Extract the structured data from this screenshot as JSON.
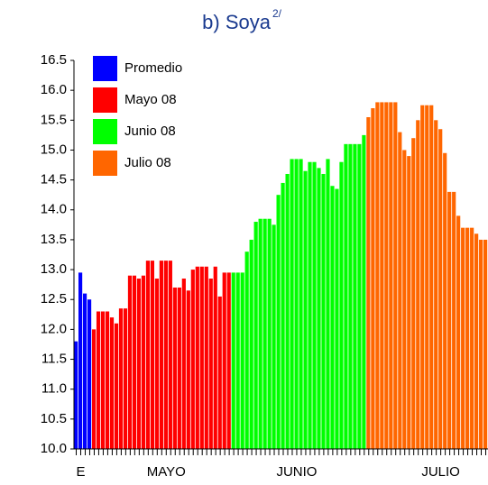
{
  "chart_data": {
    "type": "bar",
    "title": "b) Soya",
    "title_superscript": "2/",
    "categories": [
      null,
      "E",
      null,
      null,
      null,
      null,
      null,
      null,
      null,
      null,
      null,
      null,
      null,
      null,
      null,
      null,
      null,
      null,
      null,
      null,
      "MAYO",
      null,
      null,
      null,
      null,
      null,
      null,
      null,
      null,
      null,
      null,
      null,
      null,
      null,
      null,
      null,
      null,
      null,
      null,
      null,
      null,
      null,
      null,
      null,
      null,
      null,
      null,
      null,
      null,
      "JUNIO",
      null,
      null,
      null,
      null,
      null,
      null,
      null,
      null,
      null,
      null,
      null,
      null,
      null,
      null,
      null,
      null,
      null,
      null,
      null,
      null,
      null,
      null,
      null,
      null,
      null,
      null,
      null,
      null,
      null,
      null,
      null,
      "JULIO",
      null,
      null,
      null,
      null,
      null,
      null,
      null,
      null,
      null,
      null
    ],
    "series": [
      {
        "name": "Promedio",
        "color": "#0000ff",
        "values": [
          11.8,
          12.95,
          12.6,
          12.5,
          null,
          null,
          null,
          null,
          null,
          null,
          null,
          null,
          null,
          null,
          null,
          null,
          null,
          null,
          null,
          null,
          null,
          null,
          null,
          null,
          null,
          null,
          null,
          null,
          null,
          null,
          null,
          null,
          null,
          null,
          null,
          null,
          null,
          null,
          null,
          null,
          null,
          null,
          null,
          null,
          null,
          null,
          null,
          null,
          null,
          null,
          null,
          null,
          null,
          null,
          null,
          null,
          null,
          null,
          null,
          null,
          null,
          null,
          null,
          null,
          null,
          null,
          null,
          null,
          null,
          null,
          null,
          null,
          null,
          null,
          null,
          null,
          null,
          null,
          null,
          null,
          null,
          null,
          null,
          null,
          null,
          null,
          null,
          null,
          null,
          null,
          null,
          null
        ]
      },
      {
        "name": "Mayo 08",
        "color": "#ff0000",
        "values": [
          null,
          null,
          null,
          null,
          12.0,
          12.3,
          12.3,
          12.3,
          12.2,
          12.1,
          12.35,
          12.35,
          12.9,
          12.9,
          12.85,
          12.9,
          13.15,
          13.15,
          12.85,
          13.15,
          13.15,
          13.15,
          12.7,
          12.7,
          12.85,
          12.65,
          13.0,
          13.05,
          13.05,
          13.05,
          12.85,
          13.05,
          12.55,
          12.95,
          12.95,
          null,
          null,
          null,
          null,
          null,
          null,
          null,
          null,
          null,
          null,
          null,
          null,
          null,
          null,
          null,
          null,
          null,
          null,
          null,
          null,
          null,
          null,
          null,
          null,
          null,
          null,
          null,
          null,
          null,
          null,
          null,
          null,
          null,
          null,
          null,
          null,
          null,
          null,
          null,
          null,
          null,
          null,
          null,
          null,
          null,
          null,
          null,
          null,
          null,
          null,
          null,
          null,
          null,
          null,
          null,
          null,
          null
        ]
      },
      {
        "name": "Junio 08",
        "color": "#00ff00",
        "values": [
          null,
          null,
          null,
          null,
          null,
          null,
          null,
          null,
          null,
          null,
          null,
          null,
          null,
          null,
          null,
          null,
          null,
          null,
          null,
          null,
          null,
          null,
          null,
          null,
          null,
          null,
          null,
          null,
          null,
          null,
          null,
          null,
          null,
          null,
          null,
          12.95,
          12.95,
          12.95,
          13.3,
          13.5,
          13.8,
          13.85,
          13.85,
          13.85,
          13.75,
          14.25,
          14.45,
          14.6,
          14.85,
          14.85,
          14.85,
          14.65,
          14.8,
          14.8,
          14.7,
          14.6,
          14.85,
          14.4,
          14.35,
          14.8,
          15.1,
          15.1,
          15.1,
          15.1,
          15.25,
          null,
          null,
          null,
          null,
          null,
          null,
          null,
          null,
          null,
          null,
          null,
          null,
          null,
          null,
          null,
          null,
          null,
          null,
          null,
          null,
          null,
          null,
          null,
          null,
          null,
          null,
          null
        ]
      },
      {
        "name": "Julio 08",
        "color": "#ff6600",
        "values": [
          null,
          null,
          null,
          null,
          null,
          null,
          null,
          null,
          null,
          null,
          null,
          null,
          null,
          null,
          null,
          null,
          null,
          null,
          null,
          null,
          null,
          null,
          null,
          null,
          null,
          null,
          null,
          null,
          null,
          null,
          null,
          null,
          null,
          null,
          null,
          null,
          null,
          null,
          null,
          null,
          null,
          null,
          null,
          null,
          null,
          null,
          null,
          null,
          null,
          null,
          null,
          null,
          null,
          null,
          null,
          null,
          null,
          null,
          null,
          null,
          null,
          null,
          null,
          null,
          null,
          15.55,
          15.7,
          15.8,
          15.8,
          15.8,
          15.8,
          15.8,
          15.3,
          15.0,
          14.9,
          15.2,
          15.5,
          15.75,
          15.75,
          15.75,
          15.5,
          15.35,
          14.95,
          14.3,
          14.3,
          13.9,
          13.7,
          13.7,
          13.7,
          13.6,
          13.5,
          13.5
        ]
      }
    ],
    "ylim": [
      10,
      16.5
    ],
    "yticks": [
      {
        "value": 10,
        "label": "10.0"
      },
      10.5,
      {
        "value": 11,
        "label": "11.0"
      },
      11.5,
      {
        "value": 12,
        "label": "12.0"
      },
      12.5,
      {
        "value": 13,
        "label": "13.0"
      },
      13.5,
      {
        "value": 14,
        "label": "14.0"
      },
      14.5,
      {
        "value": 15,
        "label": "15.0"
      },
      15.5,
      {
        "value": 16,
        "label": "16.0"
      },
      16.5
    ],
    "grid": false,
    "legend": "upper left"
  }
}
